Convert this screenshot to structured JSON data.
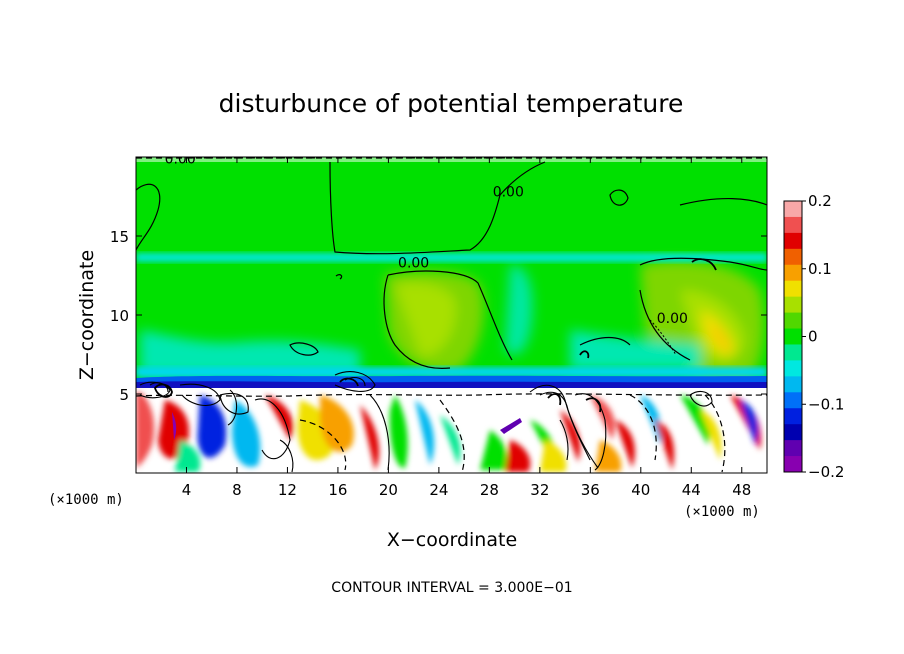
{
  "chart_data": {
    "type": "heatmap",
    "title": "disturbunce of potential temperature",
    "xlabel": "X−coordinate",
    "ylabel": "Z−coordinate",
    "x_unit": "(×1000 m)",
    "x_unit_right": "(×1000 m)",
    "xlim": [
      0,
      50
    ],
    "ylim": [
      0,
      20
    ],
    "x_ticks": [
      4,
      8,
      12,
      16,
      20,
      24,
      28,
      32,
      36,
      40,
      44,
      48
    ],
    "x_tick_labels": [
      "4",
      "8",
      "12",
      "16",
      "20",
      "24",
      "28",
      "32",
      "36",
      "40",
      "44",
      "48"
    ],
    "y_ticks": [
      5,
      10,
      15
    ],
    "y_tick_labels": [
      "5",
      "10",
      "15"
    ],
    "colorbar": {
      "min": -0.2,
      "max": 0.2,
      "ticks": [
        0.2,
        0.1,
        0,
        -0.1,
        -0.2
      ],
      "tick_labels": [
        "0.2",
        "0.1",
        "0",
        "−0.1",
        "−0.2"
      ],
      "colors": [
        "#f8a8a8",
        "#f05050",
        "#e00000",
        "#f06000",
        "#f8a000",
        "#f0e000",
        "#a8e000",
        "#50d800",
        "#00e000",
        "#00e890",
        "#00e8e0",
        "#00b8f0",
        "#0070f8",
        "#0020e0",
        "#0000b0",
        "#6000b0",
        "#8800b0"
      ]
    },
    "contour_labels": [
      {
        "x": 3.5,
        "z": 19.6,
        "text": "0.00"
      },
      {
        "x": 29.5,
        "z": 17.5,
        "text": "0.00"
      },
      {
        "x": 22.0,
        "z": 13.0,
        "text": "0.00"
      },
      {
        "x": 42.5,
        "z": 9.5,
        "text": "0.00"
      }
    ],
    "footnote": "CONTOUR INTERVAL = 3.000E−01"
  }
}
